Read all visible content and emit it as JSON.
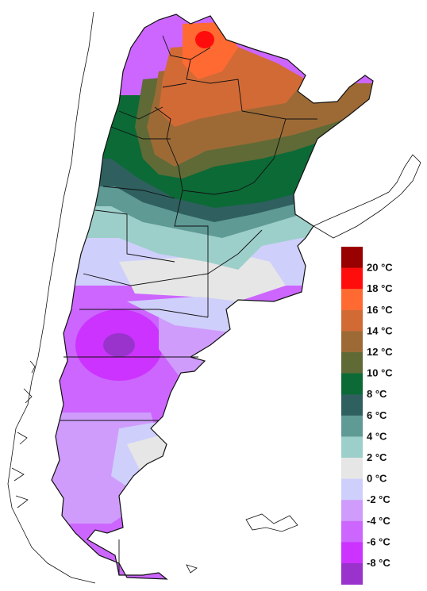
{
  "legend": {
    "items": [
      {
        "label": "20 °C",
        "color": "#990000"
      },
      {
        "label": "18 °C",
        "color": "#ff0d0d"
      },
      {
        "label": "16 °C",
        "color": "#ff6a33"
      },
      {
        "label": "14 °C",
        "color": "#d26a36"
      },
      {
        "label": "12 °C",
        "color": "#9d6a36"
      },
      {
        "label": "10 °C",
        "color": "#5f6a36"
      },
      {
        "label": "8 °C",
        "color": "#0b6a36"
      },
      {
        "label": "6 °C",
        "color": "#2f5f5f"
      },
      {
        "label": "4 °C",
        "color": "#5f9a95"
      },
      {
        "label": "2 °C",
        "color": "#9dcfca"
      },
      {
        "label": "0 °C",
        "color": "#e6e6e6"
      },
      {
        "label": "-2 °C",
        "color": "#cfcffc"
      },
      {
        "label": "-4 °C",
        "color": "#cf9cfc"
      },
      {
        "label": "-6 °C",
        "color": "#cc66ff"
      },
      {
        "label": "-8 °C",
        "color": "#cc33ff"
      },
      {
        "label": "",
        "color": "#9933cc"
      }
    ]
  },
  "colors": {
    "outline": "#000000",
    "background": "#ffffff"
  }
}
